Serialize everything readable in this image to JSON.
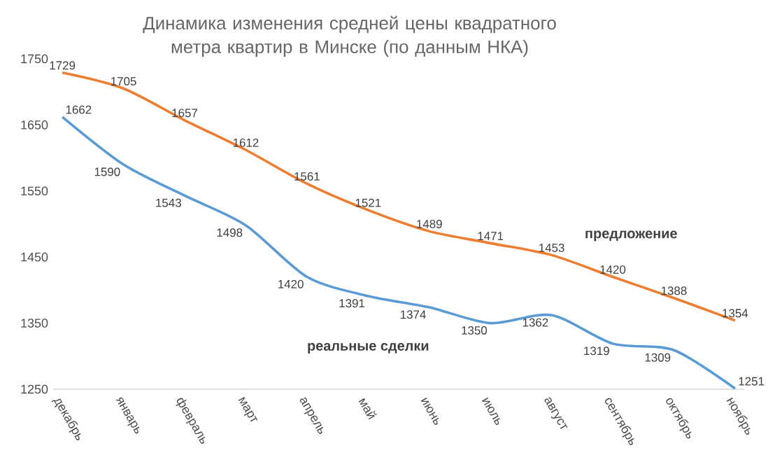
{
  "chart_data": {
    "type": "line",
    "title": "Динамика изменения средней цены квадратного метра квартир в Минске (по данным НКА)",
    "categories": [
      "декабрь",
      "январь",
      "февраль",
      "март",
      "апрель",
      "май",
      "июнь",
      "июль",
      "август",
      "сентябрь",
      "октябрь",
      "ноябрь"
    ],
    "series": [
      {
        "name": "предложение",
        "color": "#ed7d31",
        "values": [
          1729,
          1705,
          1657,
          1612,
          1561,
          1521,
          1489,
          1471,
          1453,
          1420,
          1388,
          1354
        ]
      },
      {
        "name": "реальные сделки",
        "color": "#5b9bd5",
        "values": [
          1662,
          1590,
          1543,
          1498,
          1420,
          1391,
          1374,
          1350,
          1362,
          1319,
          1309,
          1251
        ]
      }
    ],
    "ylim": [
      1250,
      1750
    ],
    "yticks": [
      1250,
      1350,
      1450,
      1550,
      1650,
      1750
    ],
    "data_labels": true,
    "line_style": "solid"
  }
}
